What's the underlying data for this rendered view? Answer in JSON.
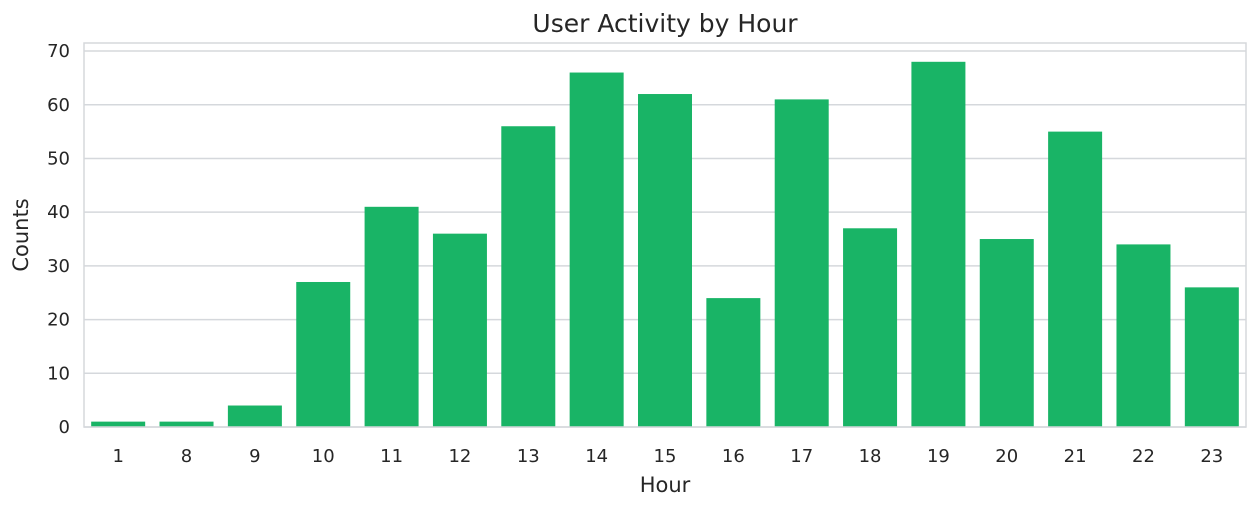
{
  "chart_data": {
    "type": "bar",
    "title": "User Activity by Hour",
    "xlabel": "Hour",
    "ylabel": "Counts",
    "categories": [
      "1",
      "8",
      "9",
      "10",
      "11",
      "12",
      "13",
      "14",
      "15",
      "16",
      "17",
      "18",
      "19",
      "20",
      "21",
      "22",
      "23"
    ],
    "values": [
      1,
      1,
      4,
      27,
      41,
      36,
      56,
      66,
      62,
      24,
      61,
      37,
      68,
      35,
      55,
      34,
      26
    ],
    "ylim": [
      0,
      71.5
    ],
    "yticks": [
      "0",
      "10",
      "20",
      "30",
      "40",
      "50",
      "60",
      "70"
    ],
    "grid": "horizontal",
    "colors": {
      "bar": "#19b466",
      "grid": "#d5d8dc",
      "text": "#262626"
    }
  }
}
